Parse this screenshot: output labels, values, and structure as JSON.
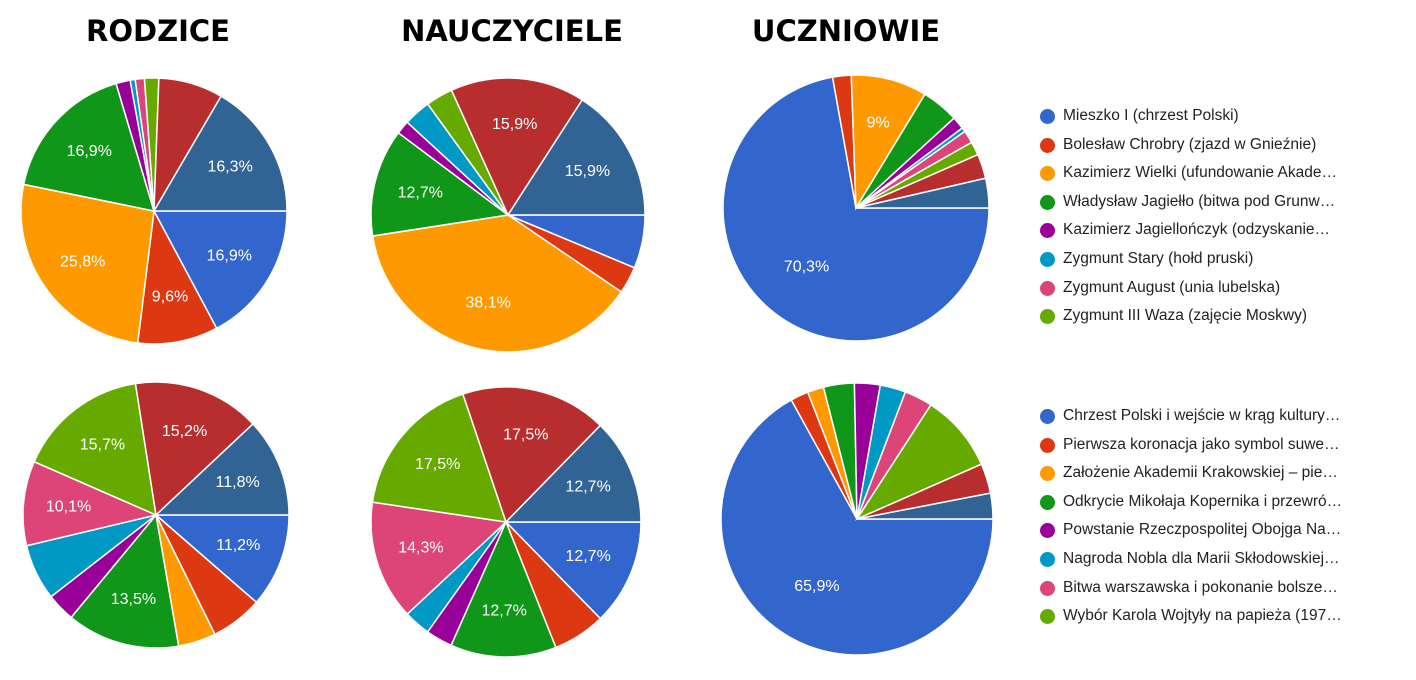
{
  "titles": [
    "RODZICE",
    "NAUCZYCIELE",
    "UCZNIOWIE"
  ],
  "colors": [
    "#3366cc",
    "#dc3912",
    "#ff9900",
    "#109618",
    "#990099",
    "#0099c6",
    "#dd4477",
    "#66aa00",
    "#b82e2e",
    "#316395"
  ],
  "legends": [
    [
      "Mieszko I (chrzest Polski)",
      "Bolesław Chrobry (zjazd w Gnieźnie)",
      "Kazimierz Wielki (ufundowanie Akade…",
      "Władysław Jagiełło (bitwa pod Grunw…",
      "Kazimierz Jagiellończyk (odzyskanie…",
      "Zygmunt Stary (hołd pruski)",
      "Zygmunt August (unia lubelska)",
      "Zygmunt III Waza (zajęcie Moskwy)"
    ],
    [
      "Chrzest Polski i wejście w krąg kultury…",
      "Pierwsza koronacja jako symbol suwe…",
      "Założenie Akademii Krakowskiej – pie…",
      "Odkrycie Mikołaja Kopernika i przewró…",
      "Powstanie Rzeczpospolitej Obojga Na…",
      "Nagroda Nobla dla Marii Skłodowskiej…",
      "Bitwa warszawska i pokonanie bolsze…",
      "Wybór Karola Wojtyły na papieża (197…"
    ]
  ],
  "chart_data": [
    {
      "type": "pie",
      "title": "RODZICE",
      "values": [
        16.9,
        9.6,
        25.8,
        16.9,
        1.7,
        0.6,
        1.1,
        1.7,
        7.7,
        16.3
      ],
      "labels": [
        "16,9%",
        "9,6%",
        "25,8%",
        "16,9%",
        "",
        "",
        "",
        "",
        "",
        "16,3%"
      ]
    },
    {
      "type": "pie",
      "title": "NAUCZYCIELE",
      "values": [
        6.3,
        3.2,
        38.1,
        12.7,
        1.6,
        3.2,
        0,
        3.2,
        15.9,
        15.9
      ],
      "labels": [
        "",
        "",
        "38,1%",
        "12,7%",
        "",
        "",
        "",
        "",
        "15,9%",
        "15,9%"
      ]
    },
    {
      "type": "pie",
      "title": "UCZNIOWIE",
      "values": [
        70.3,
        2.2,
        9.0,
        4.4,
        1.5,
        0.5,
        1.5,
        1.6,
        2.9,
        3.5
      ],
      "labels": [
        "70,3%",
        "",
        "9%",
        "",
        "",
        "",
        "",
        "",
        "",
        ""
      ]
    },
    {
      "type": "pie",
      "title": "",
      "values": [
        11.2,
        6.2,
        4.5,
        13.5,
        3.4,
        6.7,
        10.1,
        15.7,
        15.2,
        11.8
      ],
      "labels": [
        "11,2%",
        "",
        "",
        "13,5%",
        "",
        "",
        "10,1%",
        "15,7%",
        "15,2%",
        "11,8%"
      ]
    },
    {
      "type": "pie",
      "title": "",
      "values": [
        12.7,
        6.3,
        0,
        12.7,
        3.2,
        3.2,
        14.3,
        17.5,
        17.5,
        12.7
      ],
      "labels": [
        "12,7%",
        "",
        "",
        "12,7%",
        "",
        "",
        "14,3%",
        "17,5%",
        "17,5%",
        "12,7%"
      ]
    },
    {
      "type": "pie",
      "title": "",
      "values": [
        65.9,
        2.1,
        1.9,
        3.6,
        3.0,
        3.0,
        3.3,
        9.1,
        3.5,
        3.0
      ],
      "labels": [
        "65,9%",
        "",
        "",
        "",
        "",
        "",
        "",
        "",
        "",
        ""
      ]
    }
  ]
}
